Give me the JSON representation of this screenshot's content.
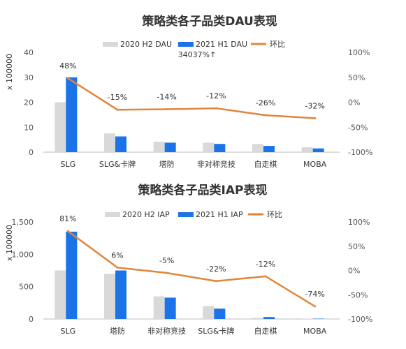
{
  "colors": {
    "bar2020": "#d9d9d9",
    "bar2021": "#1a73e8",
    "line": "#e0863a",
    "text": "#333333",
    "axis": "#555555"
  },
  "chart_data": [
    {
      "type": "bar",
      "title": "策略类各子品类DAU表现",
      "ylabel": "x 100000",
      "categories": [
        "SLG",
        "SLG&卡牌",
        "塔防",
        "非对称竞技",
        "自走棋",
        "MOBA"
      ],
      "series": [
        {
          "name": "2020 H2 DAU",
          "kind": "bar",
          "values": [
            20,
            7.5,
            4.2,
            3.8,
            3.3,
            2
          ]
        },
        {
          "name": "2021 H1 DAU",
          "kind": "bar",
          "values": [
            30,
            6.3,
            3.8,
            3.3,
            2.5,
            1.5
          ]
        },
        {
          "name": "环比",
          "kind": "line",
          "axis": "right",
          "values": [
            48,
            -15,
            -14,
            -12,
            -26,
            -32
          ]
        }
      ],
      "point_labels": [
        "48%",
        "-15%",
        "-14%",
        "-12%",
        "-26%",
        "-32%"
      ],
      "ylim": [
        0,
        40
      ],
      "yticks": [
        "0",
        "10",
        "20",
        "30",
        "40"
      ],
      "y2lim": [
        -100,
        100
      ],
      "y2ticks": [
        "-100%",
        "-50%",
        "0%",
        "50%",
        "100%"
      ],
      "annotation": "34037%↑",
      "legend": "top-right",
      "grid": false
    },
    {
      "type": "bar",
      "title": "策略类各子品类IAP表现",
      "ylabel": "x 100000",
      "categories": [
        "SLG",
        "塔防",
        "非对称竞技",
        "SLG&卡牌",
        "自走棋",
        "MOBA"
      ],
      "series": [
        {
          "name": "2020 H2 IAP",
          "kind": "bar",
          "values": [
            750,
            700,
            350,
            200,
            20,
            5
          ]
        },
        {
          "name": "2021 H1 IAP",
          "kind": "bar",
          "values": [
            1350,
            750,
            330,
            160,
            30,
            5
          ]
        },
        {
          "name": "环比",
          "kind": "line",
          "axis": "right",
          "values": [
            81,
            6,
            -5,
            -22,
            -12,
            -74
          ]
        }
      ],
      "point_labels": [
        "81%",
        "6%",
        "-5%",
        "-22%",
        "-12%",
        "-74%"
      ],
      "ylim": [
        0,
        1500
      ],
      "yticks": [
        "0",
        "500",
        "1,000",
        "1,500"
      ],
      "y2lim": [
        -100,
        100
      ],
      "y2ticks": [
        "-100%",
        "-50%",
        "0%",
        "50%",
        "100%"
      ],
      "legend": "top-right",
      "grid": false
    }
  ]
}
